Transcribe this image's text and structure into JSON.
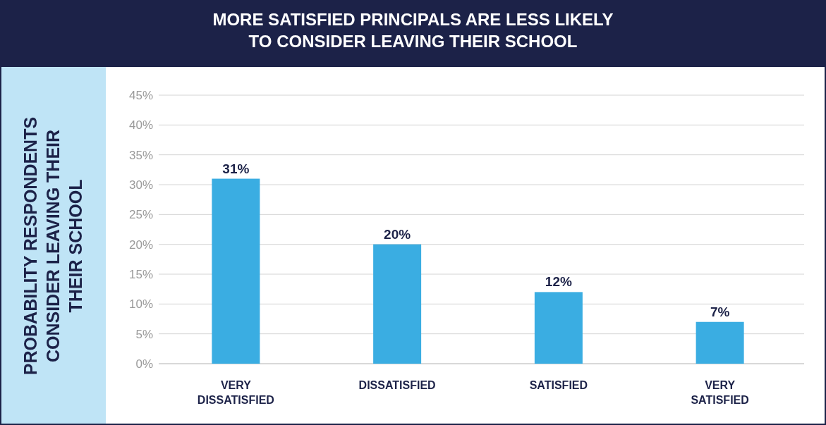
{
  "chart_data": {
    "type": "bar",
    "title": "MORE SATISFIED PRINCIPALS ARE LESS LIKELY TO CONSIDER LEAVING THEIR SCHOOL",
    "ylabel": "PROBABILITY RESPONDENTS CONSIDER LEAVING THEIR THEIR SCHOOL",
    "categories": [
      "VERY DISSATISFIED",
      "DISSATISFIED",
      "SATISFIED",
      "VERY SATISFIED"
    ],
    "values": [
      31,
      20,
      12,
      7
    ],
    "value_labels": [
      "31%",
      "20%",
      "12%",
      "7%"
    ],
    "color": "#3aade2",
    "ylim": [
      0,
      45
    ],
    "yticks": [
      {
        "value": 0,
        "label": "0%"
      },
      {
        "value": 5,
        "label": "5%"
      },
      {
        "value": 10,
        "label": "10%"
      },
      {
        "value": 15,
        "label": "15%"
      },
      {
        "value": 20,
        "label": "20%"
      },
      {
        "value": 25,
        "label": "25%"
      },
      {
        "value": 30,
        "label": "30%"
      },
      {
        "value": 35,
        "label": "35%"
      },
      {
        "value": 40,
        "label": "40%"
      },
      {
        "value": 45,
        "label": "45%"
      }
    ],
    "grid": true
  }
}
